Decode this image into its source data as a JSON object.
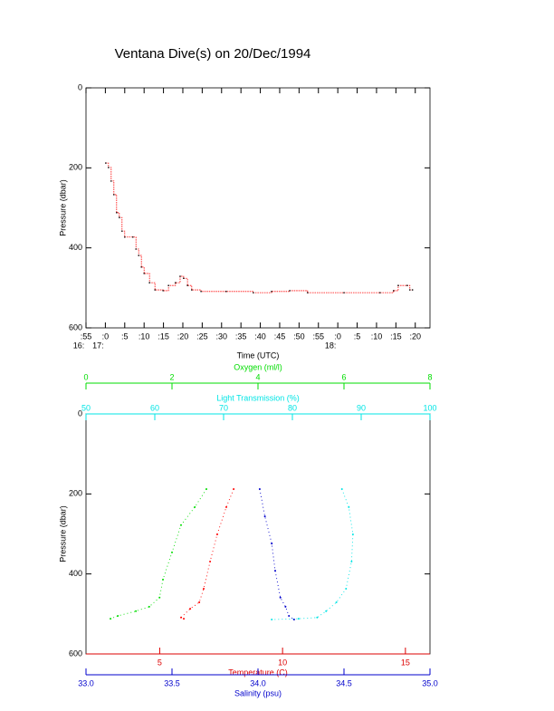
{
  "title": "Ventana Dive(s) on 20/Dec/1994",
  "chart_data": [
    {
      "type": "line",
      "xlabel": "Time (UTC)",
      "ylabel": "Pressure (dbar)",
      "xlim": [
        1015,
        1103.8
      ],
      "ylim": [
        0,
        600
      ],
      "y_inverted": true,
      "yticks": [
        0,
        200,
        400,
        600
      ],
      "xticks": [
        {
          "value": 1015,
          "label": ":55",
          "label2": "16:"
        },
        {
          "value": 1020,
          "label": ":0",
          "label2": "17:"
        },
        {
          "value": 1025,
          "label": ":5"
        },
        {
          "value": 1030,
          "label": ":10"
        },
        {
          "value": 1035,
          "label": ":15"
        },
        {
          "value": 1040,
          "label": ":20"
        },
        {
          "value": 1045,
          "label": ":25"
        },
        {
          "value": 1050,
          "label": ":30"
        },
        {
          "value": 1055,
          "label": ":35"
        },
        {
          "value": 1060,
          "label": ":40"
        },
        {
          "value": 1065,
          "label": ":45"
        },
        {
          "value": 1070,
          "label": ":50"
        },
        {
          "value": 1075,
          "label": ":55"
        },
        {
          "value": 1080,
          "label": ":0",
          "label2": "18:"
        },
        {
          "value": 1085,
          "label": ":5"
        },
        {
          "value": 1090,
          "label": ":10"
        },
        {
          "value": 1095,
          "label": ":15"
        },
        {
          "value": 1100,
          "label": ":20"
        }
      ],
      "series": [
        {
          "color": "#ff0000",
          "x": [
            1020.1,
            1020.8,
            1021.5,
            1022.2,
            1022.9,
            1023.6,
            1024.3,
            1025.0,
            1027.1,
            1027.9,
            1028.6,
            1029.3,
            1030.0,
            1031.4,
            1032.8,
            1034.9,
            1036.3,
            1038.1,
            1039.3,
            1040.2,
            1041.2,
            1042.3,
            1044.7,
            1051.2,
            1058.2,
            1062.9,
            1067.6,
            1072.2,
            1081.6,
            1090.9,
            1094.4,
            1095.6,
            1097.9,
            1098.6,
            1099.3
          ],
          "values": [
            188,
            199,
            233,
            267,
            312,
            324,
            358,
            373,
            373,
            403,
            419,
            448,
            464,
            487,
            505,
            507,
            494,
            487,
            471,
            476,
            494,
            505,
            509,
            509,
            512,
            509,
            507,
            512,
            512,
            512,
            507,
            494,
            494,
            505,
            505
          ]
        }
      ]
    },
    {
      "type": "scatter",
      "ylabel": "Pressure (dbar)",
      "ylim": [
        0,
        600
      ],
      "y_inverted": true,
      "yticks": [
        0,
        200,
        400,
        600
      ],
      "axes": [
        {
          "label": "Oxygen (ml/l)",
          "color": "#00dd00",
          "side": "top",
          "lim": [
            0,
            8
          ],
          "ticks": [
            0,
            2,
            4,
            6,
            8
          ]
        },
        {
          "label": "Light Transmission (%)",
          "color": "#00e5e5",
          "side": "top",
          "lim": [
            50,
            100
          ],
          "ticks": [
            50,
            60,
            70,
            80,
            90,
            100
          ]
        },
        {
          "label": "Temperature (C)",
          "color": "#dd0000",
          "side": "bottom",
          "lim": [
            2,
            16
          ],
          "ticks": [
            5,
            10,
            15
          ]
        },
        {
          "label": "Salinity (psu)",
          "color": "#0000cc",
          "side": "bottom",
          "lim": [
            33,
            35
          ],
          "ticks": [
            {
              "value": 33,
              "label": "33.0"
            },
            {
              "value": 33.5,
              "label": "33.5"
            },
            {
              "value": 34,
              "label": "34.0"
            },
            {
              "value": 34.5,
              "label": "34.5"
            },
            {
              "value": 35,
              "label": "35.0"
            }
          ]
        }
      ],
      "series": [
        {
          "axis": 0,
          "color": "#00dd00",
          "x": [
            2.8,
            2.53,
            2.21,
            2.0,
            1.79,
            1.71,
            1.47,
            1.16,
            0.74,
            0.57
          ],
          "values": [
            188,
            233,
            278,
            346,
            414,
            459,
            482,
            493,
            505,
            512
          ]
        },
        {
          "axis": 1,
          "color": "#00e5e5",
          "x": [
            87.2,
            88.2,
            88.8,
            88.6,
            87.8,
            86.4,
            84.9,
            83.6,
            80.9,
            77.0
          ],
          "values": [
            188,
            233,
            301,
            369,
            437,
            471,
            493,
            509,
            512,
            514
          ]
        },
        {
          "axis": 2,
          "color": "#ff0000",
          "x": [
            8.01,
            7.71,
            7.34,
            7.05,
            6.79,
            6.61,
            6.24,
            5.87,
            5.98
          ],
          "values": [
            188,
            233,
            301,
            369,
            437,
            471,
            487,
            509,
            512
          ]
        },
        {
          "axis": 3,
          "color": "#0000cc",
          "x": [
            34.01,
            34.04,
            34.08,
            34.1,
            34.13,
            34.16,
            34.18,
            34.21
          ],
          "values": [
            188,
            256,
            324,
            392,
            459,
            482,
            505,
            514
          ]
        }
      ]
    }
  ]
}
